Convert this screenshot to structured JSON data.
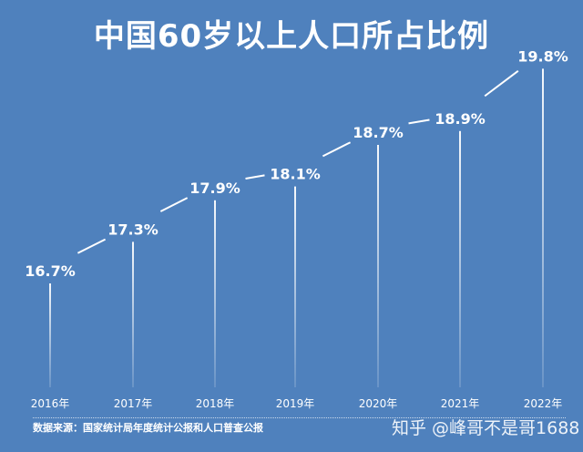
{
  "chart_data": {
    "type": "line",
    "title": "中国60岁以上人口所占比例",
    "categories": [
      "2016年",
      "2017年",
      "2018年",
      "2019年",
      "2020年",
      "2021年",
      "2022年"
    ],
    "values": [
      16.7,
      17.3,
      17.9,
      18.1,
      18.7,
      18.9,
      19.8
    ],
    "value_labels": [
      "16.7%",
      "17.3%",
      "17.9%",
      "18.1%",
      "18.7%",
      "18.9%",
      "19.8%"
    ],
    "unit": "%",
    "grid": false,
    "legend": "none",
    "colors": {
      "background": "#4f81bd",
      "marks": "#ffffff"
    }
  },
  "source": "数据来源：国家统计局年度统计公报和人口普查公报",
  "watermark": "知乎 @峰哥不是哥1688"
}
